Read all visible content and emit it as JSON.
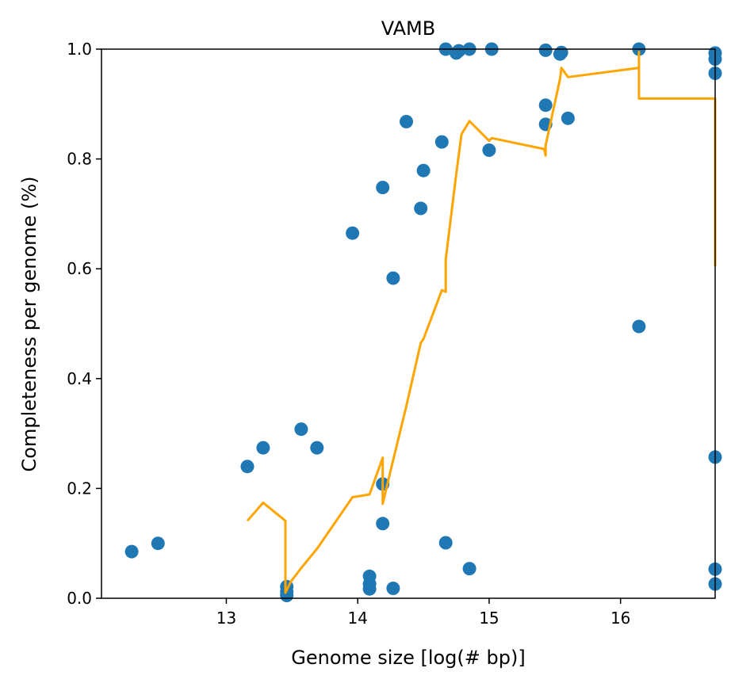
{
  "chart_data": {
    "type": "scatter",
    "title": "VAMB",
    "xlabel": "Genome size [log(# bp)]",
    "ylabel": "Completeness per genome (%)",
    "xlim": [
      12.05,
      16.72
    ],
    "ylim": [
      0.0,
      1.0
    ],
    "x_ticks": [
      13,
      14,
      15,
      16
    ],
    "x_tick_labels": [
      "13",
      "14",
      "15",
      "16"
    ],
    "y_ticks": [
      0.0,
      0.2,
      0.4,
      0.6,
      0.8,
      1.0
    ],
    "y_tick_labels": [
      "0.0",
      "0.2",
      "0.4",
      "0.6",
      "0.8",
      "1.0"
    ],
    "grid": false,
    "colors": {
      "points": "#1f77b4",
      "trend": "#ffa500",
      "axes": "#000000"
    },
    "series": [
      {
        "type": "scatter",
        "points": [
          [
            12.28,
            0.085
          ],
          [
            12.48,
            0.1
          ],
          [
            13.16,
            0.24
          ],
          [
            13.28,
            0.274
          ],
          [
            13.46,
            0.021
          ],
          [
            13.46,
            0.012
          ],
          [
            13.46,
            0.005
          ],
          [
            13.57,
            0.308
          ],
          [
            13.69,
            0.274
          ],
          [
            13.96,
            0.665
          ],
          [
            14.09,
            0.04
          ],
          [
            14.09,
            0.026
          ],
          [
            14.09,
            0.017
          ],
          [
            14.19,
            0.208
          ],
          [
            14.19,
            0.136
          ],
          [
            14.19,
            0.748
          ],
          [
            14.27,
            0.583
          ],
          [
            14.27,
            0.018
          ],
          [
            14.37,
            0.868
          ],
          [
            14.48,
            0.71
          ],
          [
            14.5,
            0.779
          ],
          [
            14.64,
            0.831
          ],
          [
            14.67,
            1.0
          ],
          [
            14.67,
            0.101
          ],
          [
            14.75,
            0.993
          ],
          [
            14.77,
            0.997
          ],
          [
            14.85,
            1.0
          ],
          [
            14.85,
            0.054
          ],
          [
            15.0,
            0.816
          ],
          [
            15.02,
            1.0
          ],
          [
            15.43,
            0.998
          ],
          [
            15.43,
            0.898
          ],
          [
            15.43,
            0.863
          ],
          [
            15.54,
            0.991
          ],
          [
            15.55,
            0.994
          ],
          [
            15.6,
            0.874
          ],
          [
            16.14,
            1.0
          ],
          [
            16.14,
            0.495
          ],
          [
            16.72,
            0.993
          ],
          [
            16.72,
            0.982
          ],
          [
            16.72,
            0.956
          ],
          [
            16.72,
            0.257
          ],
          [
            16.72,
            0.053
          ],
          [
            16.72,
            0.026
          ]
        ]
      },
      {
        "type": "line",
        "points": [
          [
            13.16,
            0.141
          ],
          [
            13.28,
            0.174
          ],
          [
            13.45,
            0.141
          ],
          [
            13.45,
            0.01
          ],
          [
            13.49,
            0.03
          ],
          [
            13.57,
            0.055
          ],
          [
            13.69,
            0.09
          ],
          [
            13.96,
            0.184
          ],
          [
            14.09,
            0.189
          ],
          [
            14.19,
            0.256
          ],
          [
            14.19,
            0.172
          ],
          [
            14.25,
            0.232
          ],
          [
            14.37,
            0.35
          ],
          [
            14.48,
            0.465
          ],
          [
            14.5,
            0.472
          ],
          [
            14.64,
            0.561
          ],
          [
            14.67,
            0.558
          ],
          [
            14.67,
            0.617
          ],
          [
            14.75,
            0.773
          ],
          [
            14.79,
            0.845
          ],
          [
            14.85,
            0.869
          ],
          [
            15.0,
            0.833
          ],
          [
            15.02,
            0.838
          ],
          [
            15.42,
            0.818
          ],
          [
            15.43,
            0.806
          ],
          [
            15.43,
            0.825
          ],
          [
            15.54,
            0.946
          ],
          [
            15.55,
            0.966
          ],
          [
            15.6,
            0.949
          ],
          [
            16.14,
            0.966
          ],
          [
            16.14,
            0.995
          ],
          [
            16.14,
            0.91
          ],
          [
            16.72,
            0.91
          ],
          [
            16.72,
            0.605
          ]
        ]
      }
    ]
  }
}
